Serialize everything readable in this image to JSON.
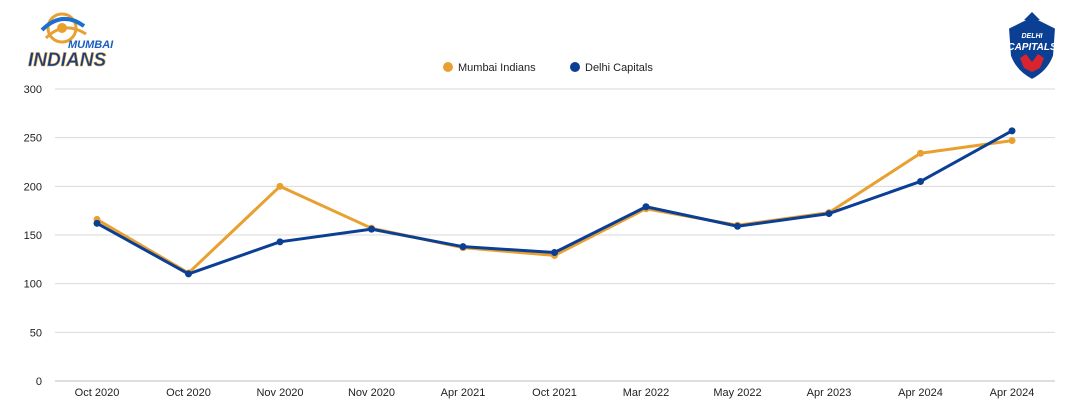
{
  "teams": {
    "left_logo": {
      "icon": "mumbai-indians-logo",
      "line1": "MUMBAI",
      "line2": "INDIANS"
    },
    "right_logo": {
      "icon": "delhi-capitals-logo",
      "line1": "DELHI",
      "line2": "CAPITALS"
    }
  },
  "colors": {
    "mumbai": "#E8A030",
    "delhi": "#0B3F94",
    "grid": "#d9d9d9"
  },
  "chart_data": {
    "type": "line",
    "title": "",
    "xlabel": "",
    "ylabel": "",
    "ylim": [
      0,
      300
    ],
    "yticks": [
      0,
      50,
      100,
      150,
      200,
      250,
      300
    ],
    "grid": true,
    "legend_position": "top-center",
    "categories": [
      "Oct 2020",
      "Oct 2020",
      "Nov 2020",
      "Nov 2020",
      "Apr 2021",
      "Oct 2021",
      "Mar 2022",
      "May 2022",
      "Apr 2023",
      "Apr 2024",
      "Apr 2024"
    ],
    "series": [
      {
        "name": "Mumbai Indians",
        "values": [
          166,
          111,
          200,
          157,
          137,
          129,
          177,
          160,
          173,
          234,
          247
        ]
      },
      {
        "name": "Delhi Capitals",
        "values": [
          162,
          110,
          143,
          156,
          138,
          132,
          179,
          159,
          172,
          205,
          257
        ]
      }
    ]
  }
}
